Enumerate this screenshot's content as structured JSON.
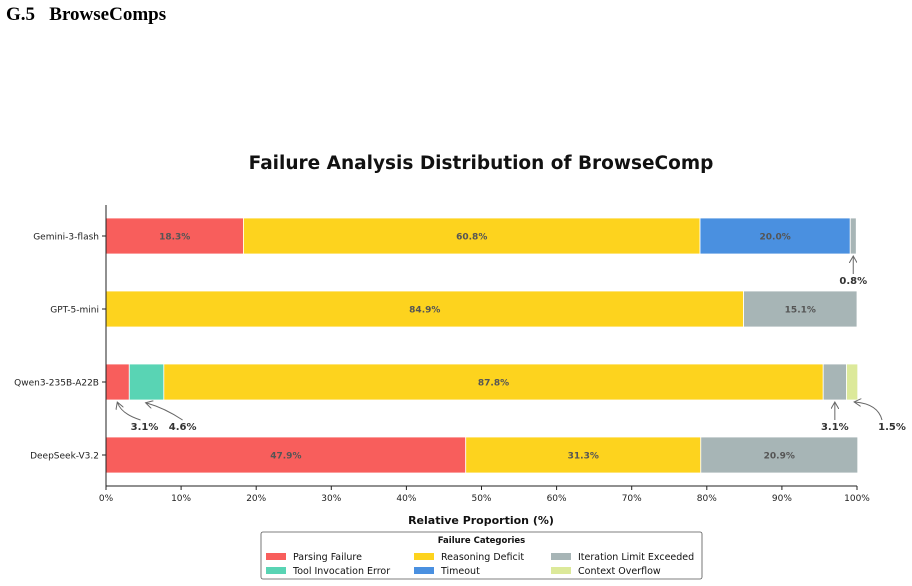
{
  "section": {
    "number": "G.5",
    "title": "BrowseComps"
  },
  "chart_data": {
    "type": "bar",
    "orientation": "horizontal",
    "stacked": true,
    "title": "Failure Analysis Distribution of BrowseComp",
    "xlabel": "Relative Proportion (%)",
    "ylabel": "",
    "xlim": [
      0,
      100
    ],
    "xticks": [
      "0%",
      "10%",
      "20%",
      "30%",
      "40%",
      "50%",
      "60%",
      "70%",
      "80%",
      "90%",
      "100%"
    ],
    "categories": [
      "Gemini-3-flash",
      "GPT-5-mini",
      "Qwen3-235B-A22B",
      "DeepSeek-V3.2"
    ],
    "series": [
      {
        "name": "Parsing Failure",
        "color": "#f85e5c",
        "values": [
          18.3,
          0,
          3.1,
          47.9
        ]
      },
      {
        "name": "Tool Invocation Error",
        "color": "#59d4b4",
        "values": [
          0,
          0,
          4.6,
          0
        ]
      },
      {
        "name": "Reasoning Deficit",
        "color": "#fdd31e",
        "values": [
          60.8,
          84.9,
          87.8,
          31.3
        ]
      },
      {
        "name": "Timeout",
        "color": "#4a90e0",
        "values": [
          20.0,
          0,
          0,
          0
        ]
      },
      {
        "name": "Iteration Limit Exceeded",
        "color": "#a7b5b6",
        "values": [
          0.8,
          15.1,
          3.1,
          20.9
        ]
      },
      {
        "name": "Context Overflow",
        "color": "#dce99a",
        "values": [
          0,
          0,
          1.5,
          0
        ]
      }
    ],
    "bar_labels": [
      {
        "category": 0,
        "series": 0,
        "text": "18.3%"
      },
      {
        "category": 0,
        "series": 2,
        "text": "60.8%"
      },
      {
        "category": 0,
        "series": 3,
        "text": "20.0%"
      },
      {
        "category": 1,
        "series": 2,
        "text": "84.9%"
      },
      {
        "category": 1,
        "series": 4,
        "text": "15.1%"
      },
      {
        "category": 2,
        "series": 2,
        "text": "87.8%"
      },
      {
        "category": 3,
        "series": 0,
        "text": "47.9%"
      },
      {
        "category": 3,
        "series": 2,
        "text": "31.3%"
      },
      {
        "category": 3,
        "series": 4,
        "text": "20.9%"
      }
    ],
    "callouts": [
      {
        "category": 0,
        "series": 4,
        "text": "0.8%"
      },
      {
        "category": 2,
        "series": 0,
        "text": "3.1%"
      },
      {
        "category": 2,
        "series": 1,
        "text": "4.6%"
      },
      {
        "category": 2,
        "series": 4,
        "text": "3.1%"
      },
      {
        "category": 2,
        "series": 5,
        "text": "1.5%"
      }
    ],
    "legend": {
      "title": "Failure Categories",
      "placement": "bottom-center",
      "columns": 3,
      "order": [
        0,
        1,
        2,
        3,
        4,
        5
      ]
    },
    "grid": false
  }
}
